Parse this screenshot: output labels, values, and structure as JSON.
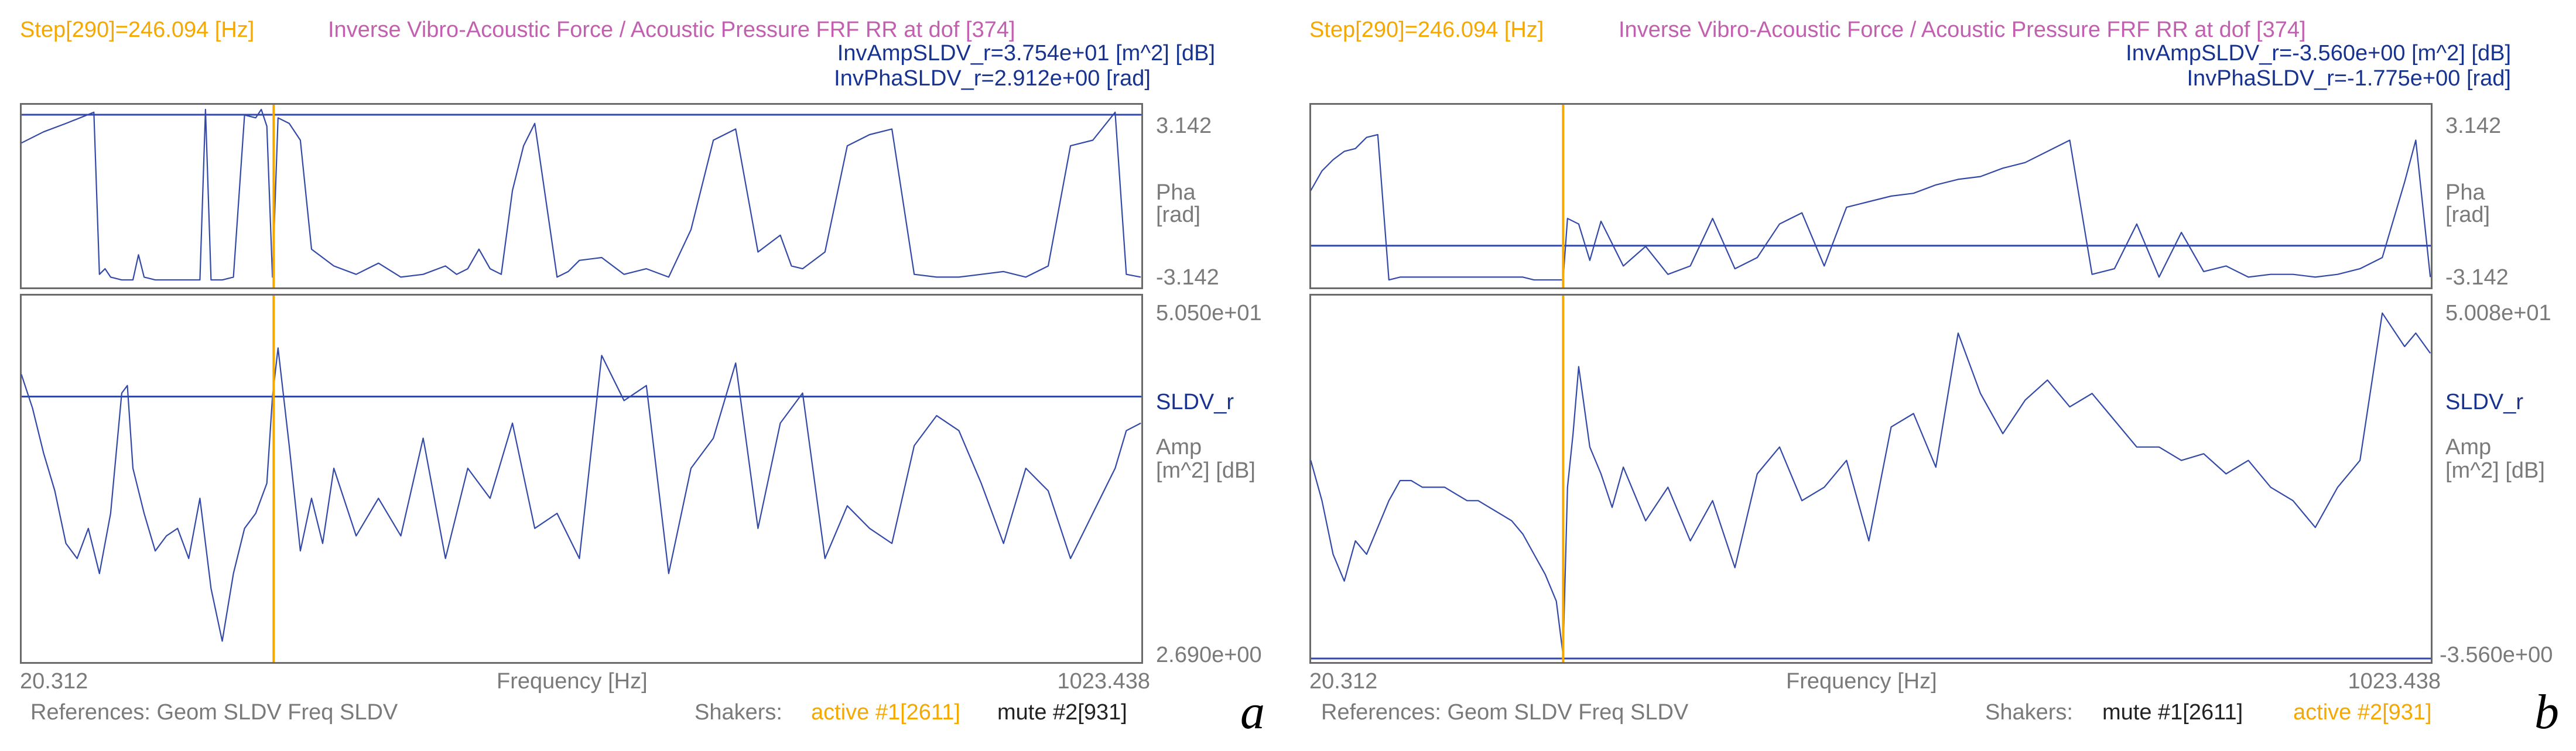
{
  "colors": {
    "step": "#f5a800",
    "title": "#c25fb0",
    "info": "#17338f",
    "axis": "#7a7a7a",
    "trace": "#3349a8",
    "frame": "#6a6a6a",
    "active": "#f5a800",
    "mute": "#222222"
  },
  "panels": [
    {
      "letter": "a",
      "step": "Step[290]=246.094 [Hz]",
      "title": "Inverse Vibro-Acoustic Force / Acoustic Pressure FRF RR at dof [374]",
      "amp_readout": "InvAmpSLDV_r=3.754e+01 [m^2] [dB]",
      "pha_readout": "InvPhaSLDV_r=2.912e+00 [rad]",
      "phase_top": "3.142",
      "phase_label": "Pha",
      "phase_unit": "[rad]",
      "phase_bottom": "-3.142",
      "amp_top": "5.050e+01",
      "trace_label": "SLDV_r",
      "amp_label": "Amp",
      "amp_unit": "[m^2] [dB]",
      "amp_bottom": "2.690e+00",
      "x_min": "20.312",
      "x_label": "Frequency [Hz]",
      "x_max": "1023.438",
      "references": "References: Geom SLDV Freq SLDV",
      "shakers_label": "Shakers:",
      "shaker1": "active #1[2611]",
      "shaker2": "mute #2[931]",
      "shaker1_state": "active",
      "shaker2_state": "mute"
    },
    {
      "letter": "b",
      "step": "Step[290]=246.094 [Hz]",
      "title": "Inverse Vibro-Acoustic Force / Acoustic Pressure FRF RR at dof [374]",
      "amp_readout": "InvAmpSLDV_r=-3.560e+00 [m^2] [dB]",
      "pha_readout": "InvPhaSLDV_r=-1.775e+00 [rad]",
      "phase_top": "3.142",
      "phase_label": "Pha",
      "phase_unit": "[rad]",
      "phase_bottom": "-3.142",
      "amp_top": "5.008e+01",
      "trace_label": "SLDV_r",
      "amp_label": "Amp",
      "amp_unit": "[m^2] [dB]",
      "amp_bottom": "-3.560e+00",
      "x_min": "20.312",
      "x_label": "Frequency [Hz]",
      "x_max": "1023.438",
      "references": "References: Geom SLDV Freq SLDV",
      "shakers_label": "Shakers:",
      "shaker1": "mute #1[2611]",
      "shaker2": "active #2[931]",
      "shaker1_state": "mute",
      "shaker2_state": "active"
    }
  ],
  "chart_data": [
    {
      "type": "line",
      "title": "Inverse Vibro-Acoustic Force / Acoustic Pressure FRF RR at dof [374] (a)",
      "xlabel": "Frequency [Hz]",
      "xlim": [
        20.312,
        1023.438
      ],
      "cursor_x": 246.094,
      "phase": {
        "ylabel": "Pha [rad]",
        "ylim": [
          -3.142,
          3.142
        ],
        "readout": 2.912,
        "x": [
          20,
          40,
          60,
          85,
          90,
          95,
          100,
          110,
          120,
          125,
          130,
          140,
          150,
          160,
          170,
          180,
          185,
          190,
          200,
          210,
          220,
          230,
          235,
          240,
          245,
          250,
          260,
          270,
          280,
          300,
          320,
          340,
          360,
          380,
          400,
          410,
          420,
          430,
          440,
          450,
          460,
          470,
          480,
          500,
          510,
          520,
          540,
          560,
          580,
          600,
          620,
          640,
          660,
          680,
          700,
          710,
          720,
          740,
          760,
          780,
          800,
          820,
          840,
          860,
          880,
          900,
          920,
          940,
          960,
          980,
          1000,
          1010,
          1023
        ],
        "values": [
          1.9,
          2.3,
          2.6,
          3.0,
          -2.8,
          -2.6,
          -2.9,
          -3.0,
          -3.0,
          -2.1,
          -2.9,
          -3.0,
          -3.0,
          -3.0,
          -3.0,
          -3.0,
          3.1,
          -3.0,
          -3.0,
          -2.9,
          2.9,
          2.8,
          3.1,
          2.5,
          -2.9,
          2.8,
          2.6,
          2.0,
          -1.9,
          -2.5,
          -2.8,
          -2.4,
          -2.9,
          -2.8,
          -2.5,
          -2.8,
          -2.6,
          -1.9,
          -2.6,
          -2.8,
          0.2,
          1.8,
          2.6,
          -2.9,
          -2.7,
          -2.3,
          -2.2,
          -2.8,
          -2.6,
          -2.9,
          -1.2,
          2.0,
          2.4,
          -2.0,
          -1.4,
          -2.5,
          -2.6,
          -2.0,
          1.8,
          2.2,
          2.4,
          -2.8,
          -2.9,
          -2.9,
          -2.8,
          -2.7,
          -2.9,
          -2.5,
          1.8,
          2.0,
          3.0,
          -2.8,
          -2.9
        ]
      },
      "amplitude": {
        "ylabel": "Amp [m^2] [dB]",
        "ylim": [
          2.69,
          50.5
        ],
        "readout": 37.54,
        "x": [
          20,
          30,
          40,
          50,
          60,
          70,
          80,
          90,
          100,
          110,
          115,
          120,
          130,
          140,
          150,
          160,
          170,
          180,
          190,
          200,
          210,
          220,
          230,
          240,
          245,
          250,
          260,
          270,
          280,
          290,
          300,
          320,
          340,
          360,
          380,
          400,
          420,
          440,
          460,
          480,
          500,
          520,
          540,
          560,
          580,
          600,
          620,
          640,
          660,
          680,
          700,
          720,
          740,
          760,
          780,
          800,
          820,
          840,
          860,
          880,
          900,
          920,
          940,
          960,
          980,
          1000,
          1010,
          1023
        ],
        "values": [
          40.5,
          36.0,
          30.0,
          25.0,
          18.0,
          16.0,
          20.0,
          14.0,
          22.0,
          38.0,
          39.0,
          28.0,
          22.0,
          17.0,
          19.0,
          20.0,
          16.0,
          24.0,
          12.0,
          5.0,
          14.0,
          20.0,
          22.0,
          26.0,
          37.5,
          44.0,
          31.0,
          17.0,
          24.0,
          18.0,
          28.0,
          19.0,
          24.0,
          19.0,
          32.0,
          16.0,
          28.0,
          24.0,
          34.0,
          20.0,
          22.0,
          16.0,
          43.0,
          37.0,
          39.0,
          14.0,
          28.0,
          32.0,
          42.0,
          20.0,
          34.0,
          38.0,
          16.0,
          23.0,
          20.0,
          18.0,
          31.0,
          35.0,
          33.0,
          26.0,
          18.0,
          28.0,
          25.0,
          16.0,
          22.0,
          28.0,
          33.0,
          34.0
        ]
      }
    },
    {
      "type": "line",
      "title": "Inverse Vibro-Acoustic Force / Acoustic Pressure FRF RR at dof [374] (b)",
      "xlabel": "Frequency [Hz]",
      "xlim": [
        20.312,
        1023.438
      ],
      "cursor_x": 246.094,
      "phase": {
        "ylabel": "Pha [rad]",
        "ylim": [
          -3.142,
          3.142
        ],
        "readout": -1.775,
        "x": [
          20,
          30,
          40,
          50,
          60,
          70,
          80,
          90,
          100,
          110,
          120,
          130,
          140,
          150,
          160,
          170,
          180,
          190,
          200,
          210,
          220,
          230,
          240,
          246,
          250,
          260,
          270,
          280,
          300,
          320,
          340,
          360,
          380,
          400,
          420,
          440,
          460,
          480,
          500,
          520,
          540,
          560,
          580,
          600,
          620,
          640,
          660,
          680,
          700,
          720,
          740,
          760,
          780,
          800,
          820,
          840,
          860,
          880,
          900,
          920,
          940,
          960,
          980,
          1000,
          1010,
          1023
        ],
        "values": [
          0.2,
          0.9,
          1.3,
          1.6,
          1.7,
          2.1,
          2.2,
          -3.0,
          -2.9,
          -2.9,
          -2.9,
          -2.9,
          -2.9,
          -2.9,
          -2.9,
          -2.9,
          -2.9,
          -2.9,
          -2.9,
          -2.9,
          -3.0,
          -3.0,
          -3.0,
          -3.0,
          -0.8,
          -1.0,
          -2.3,
          -0.9,
          -2.5,
          -1.8,
          -2.8,
          -2.5,
          -0.8,
          -2.6,
          -2.2,
          -1.0,
          -0.6,
          -2.5,
          -0.4,
          -0.2,
          0.0,
          0.1,
          0.4,
          0.6,
          0.7,
          1.0,
          1.2,
          1.6,
          2.0,
          -2.8,
          -2.6,
          -1.0,
          -2.9,
          -1.3,
          -2.7,
          -2.5,
          -2.9,
          -2.8,
          -2.8,
          -2.9,
          -2.8,
          -2.6,
          -2.2,
          0.5,
          2.0,
          -2.9
        ]
      },
      "amplitude": {
        "ylabel": "Amp [m^2] [dB]",
        "ylim": [
          -3.56,
          50.08
        ],
        "readout": -3.56,
        "x": [
          20,
          30,
          40,
          50,
          60,
          70,
          80,
          90,
          100,
          110,
          120,
          130,
          140,
          150,
          160,
          170,
          180,
          190,
          200,
          210,
          220,
          230,
          240,
          246,
          250,
          255,
          260,
          270,
          280,
          290,
          300,
          320,
          340,
          360,
          380,
          400,
          420,
          440,
          460,
          480,
          500,
          520,
          540,
          560,
          580,
          600,
          620,
          640,
          660,
          680,
          700,
          720,
          740,
          760,
          780,
          800,
          820,
          840,
          860,
          880,
          900,
          920,
          940,
          960,
          980,
          1000,
          1010,
          1023
        ],
        "values": [
          26.0,
          20.0,
          12.0,
          8.0,
          14.0,
          12.0,
          16.0,
          20.0,
          23.0,
          23.0,
          22.0,
          22.0,
          22.0,
          21.0,
          20.0,
          20.0,
          19.0,
          18.0,
          17.0,
          15.0,
          12.0,
          9.0,
          5.0,
          -3.0,
          22.0,
          30.0,
          40.0,
          28.0,
          24.0,
          19.0,
          25.0,
          17.0,
          22.0,
          14.0,
          20.0,
          10.0,
          24.0,
          28.0,
          20.0,
          22.0,
          26.0,
          14.0,
          31.0,
          33.0,
          25.0,
          45.0,
          36.0,
          30.0,
          35.0,
          38.0,
          34.0,
          36.0,
          32.0,
          28.0,
          28.0,
          26.0,
          27.0,
          24.0,
          26.0,
          22.0,
          20.0,
          16.0,
          22.0,
          26.0,
          48.0,
          43.0,
          45.0,
          42.0
        ]
      }
    }
  ]
}
